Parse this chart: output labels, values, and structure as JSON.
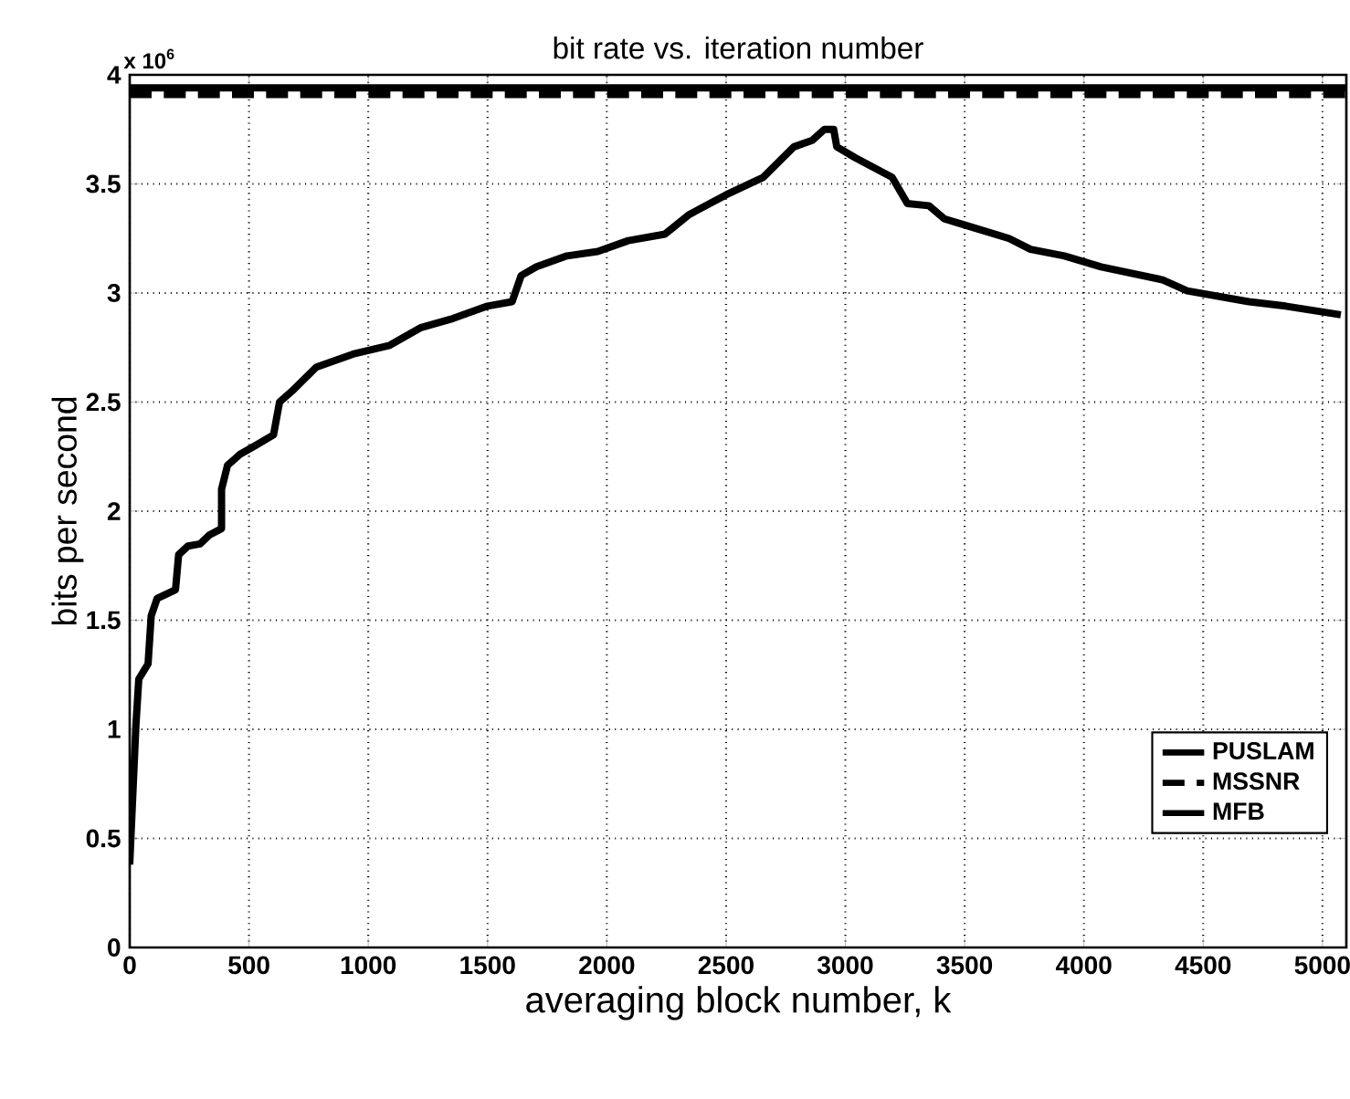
{
  "chart_data": {
    "type": "line",
    "title": "bit rate vs. iteration number",
    "xlabel": "averaging block number, k",
    "ylabel": "bits per second",
    "annotations": [
      "x 10$^{6}$"
    ],
    "xlim": [
      0,
      5100
    ],
    "ylim": [
      0,
      4
    ],
    "xticks": [
      0,
      500,
      1000,
      1500,
      2000,
      2500,
      3000,
      3500,
      4000,
      4500,
      5000
    ],
    "yticks": [
      0,
      0.5,
      1,
      1.5,
      2,
      2.5,
      3,
      3.5,
      4
    ],
    "grid": true,
    "legend": "bottom right",
    "series": [
      {
        "name": "PUSLAM",
        "color": "#000000",
        "line_style": "solid",
        "x": [
          0,
          13,
          26,
          38,
          77,
          90,
          115,
          192,
          205,
          244,
          295,
          333,
          385,
          385,
          410,
          462,
          526,
          603,
          628,
          680,
          782,
          936,
          1090,
          1218,
          1346,
          1500,
          1603,
          1641,
          1705,
          1833,
          1962,
          2090,
          2244,
          2346,
          2500,
          2655,
          2784,
          2861,
          2912,
          2951,
          2964,
          3041,
          3196,
          3260,
          3350,
          3415,
          3505,
          3686,
          3776,
          3918,
          4072,
          4330,
          4433,
          4691,
          4845,
          5077
        ],
        "values": [
          0.38,
          0.7,
          1.02,
          1.23,
          1.3,
          1.52,
          1.6,
          1.64,
          1.8,
          1.84,
          1.85,
          1.89,
          1.92,
          2.1,
          2.21,
          2.26,
          2.3,
          2.35,
          2.5,
          2.55,
          2.66,
          2.72,
          2.76,
          2.84,
          2.88,
          2.94,
          2.96,
          3.08,
          3.12,
          3.17,
          3.19,
          3.24,
          3.27,
          3.36,
          3.45,
          3.53,
          3.67,
          3.7,
          3.75,
          3.75,
          3.67,
          3.62,
          3.53,
          3.41,
          3.4,
          3.34,
          3.31,
          3.25,
          3.2,
          3.17,
          3.12,
          3.06,
          3.01,
          2.96,
          2.94,
          2.9
        ]
      },
      {
        "name": "MSSNR",
        "color": "#000000",
        "line_style": "dashed",
        "x": [
          0,
          5100
        ],
        "values": [
          3.91,
          3.91
        ]
      },
      {
        "name": "MFB",
        "color": "#000000",
        "line_style": "solid",
        "x": [
          0,
          5100
        ],
        "values": [
          3.94,
          3.94
        ]
      }
    ]
  }
}
